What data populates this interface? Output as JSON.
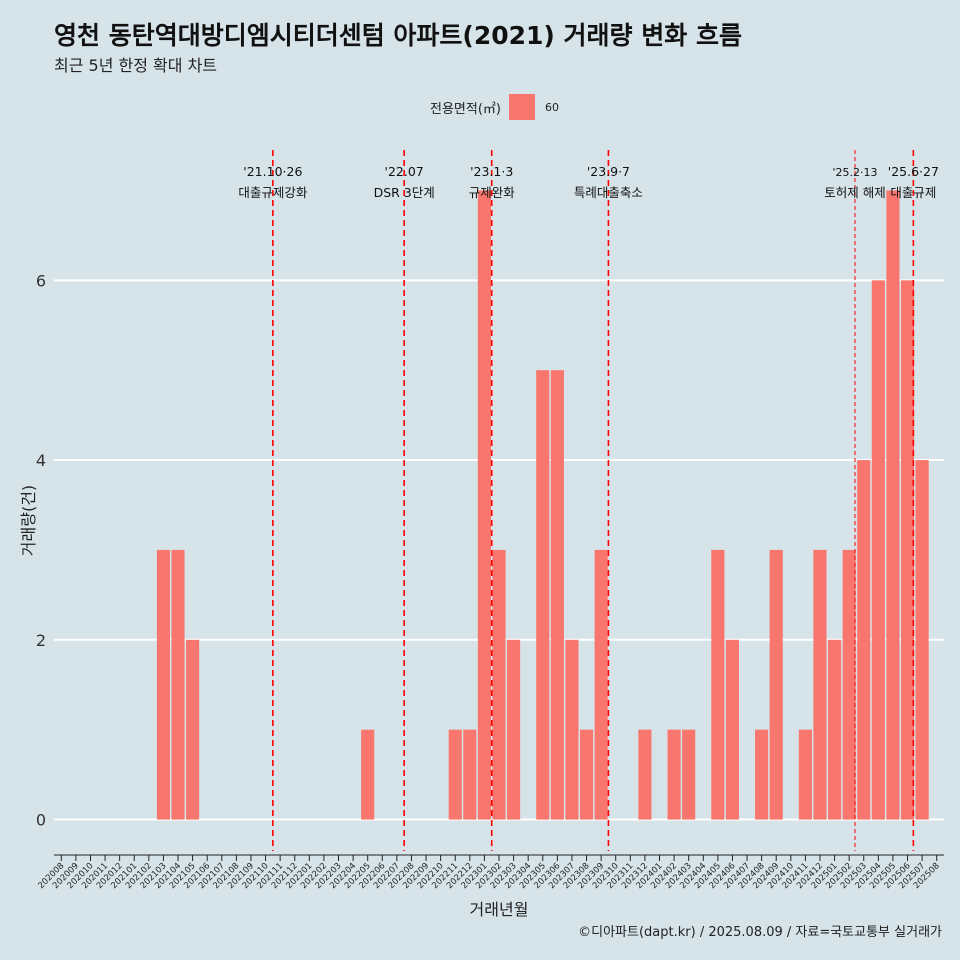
{
  "header": {
    "title": "영천 동탄역대방디엠시티더센텀 아파트(2021) 거래량 변화 흐름",
    "subtitle": "최근 5년 한정 확대 차트",
    "caption": "©디아파트(dapt.kr) / 2025.08.09 / 자료=국토교통부 실거래가"
  },
  "legend": {
    "title": "전용면적(㎡)",
    "items": [
      {
        "label": "60",
        "color": "#f8766d"
      }
    ]
  },
  "chart_data": {
    "type": "bar",
    "xlabel": "거래년월",
    "ylabel": "거래량(건)",
    "ylim": [
      -0.35,
      7.45
    ],
    "yticks": [
      0,
      2,
      4,
      6
    ],
    "grid": true,
    "legend_position": "top",
    "bar_color": "#f8766d",
    "categories": [
      "202008",
      "202009",
      "202010",
      "202011",
      "202012",
      "202101",
      "202102",
      "202103",
      "202104",
      "202105",
      "202106",
      "202107",
      "202108",
      "202109",
      "202110",
      "202111",
      "202112",
      "202201",
      "202202",
      "202203",
      "202204",
      "202205",
      "202206",
      "202207",
      "202208",
      "202209",
      "202210",
      "202211",
      "202212",
      "202301",
      "202302",
      "202303",
      "202304",
      "202305",
      "202306",
      "202307",
      "202308",
      "202309",
      "202310",
      "202311",
      "202312",
      "202401",
      "202402",
      "202403",
      "202404",
      "202405",
      "202406",
      "202407",
      "202408",
      "202409",
      "202410",
      "202411",
      "202412",
      "202501",
      "202502",
      "202503",
      "202504",
      "202505",
      "202506",
      "202507",
      "202508"
    ],
    "series": [
      {
        "values": [
          0,
          0,
          0,
          0,
          0,
          0,
          0,
          3,
          3,
          2,
          0,
          0,
          0,
          0,
          0,
          0,
          0,
          0,
          0,
          0,
          0,
          1,
          0,
          0,
          0,
          0,
          0,
          1,
          1,
          7,
          3,
          2,
          0,
          5,
          5,
          2,
          1,
          3,
          0,
          0,
          1,
          0,
          1,
          1,
          0,
          3,
          2,
          0,
          1,
          3,
          0,
          1,
          3,
          2,
          3,
          4,
          6,
          7,
          6,
          4,
          0
        ]
      }
    ],
    "annotations": [
      {
        "position": 14.5,
        "date": "'21.10·26",
        "label": "대출규제강화",
        "color": "#ff0000",
        "style": "dashed"
      },
      {
        "position": 23.5,
        "date": "'22.07",
        "label": "DSR 3단계",
        "color": "#ff0000",
        "style": "dashed"
      },
      {
        "position": 29.5,
        "date": "'23.1·3",
        "label": "규제완화",
        "color": "#ff0000",
        "style": "dashed"
      },
      {
        "position": 37.5,
        "date": "'23.9·7",
        "label": "특례대출축소",
        "color": "#ff0000",
        "style": "dashed"
      },
      {
        "position": 54.4,
        "date": "'25.2·13",
        "label": "토허제 해제",
        "color": "#ff0000",
        "style": "dashed-thin"
      },
      {
        "position": 58.4,
        "date": "'25.6·27",
        "label": "대출규제",
        "color": "#ff0000",
        "style": "dashed"
      }
    ]
  }
}
